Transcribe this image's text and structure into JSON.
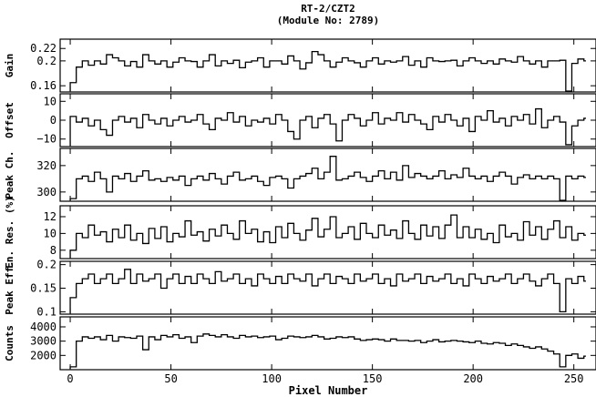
{
  "chart_data": {
    "type": "line",
    "title": [
      "RT-2/CZT2",
      "(Module No: 2789)"
    ],
    "xlabel": "Pixel Number",
    "xlim": [
      -5,
      261
    ],
    "xticks": [
      0,
      50,
      100,
      150,
      200,
      250
    ],
    "xtick_labels": [
      "0",
      "50",
      "100",
      "150",
      "200",
      "250"
    ],
    "grid": false,
    "line_color": "#000000",
    "panels": [
      {
        "ylabel": "Gain",
        "ylim": [
          0.15,
          0.235
        ],
        "yticks": [
          0.16,
          0.2,
          0.22
        ],
        "ytick_labels": [
          "0.16",
          "0.2",
          "0.22"
        ],
        "x_step": 3,
        "values": [
          0.165,
          0.19,
          0.2,
          0.193,
          0.2,
          0.195,
          0.21,
          0.205,
          0.2,
          0.192,
          0.199,
          0.19,
          0.21,
          0.2,
          0.195,
          0.2,
          0.19,
          0.198,
          0.205,
          0.2,
          0.199,
          0.19,
          0.2,
          0.21,
          0.192,
          0.2,
          0.196,
          0.201,
          0.189,
          0.198,
          0.2,
          0.205,
          0.19,
          0.2,
          0.2,
          0.195,
          0.208,
          0.2,
          0.187,
          0.197,
          0.215,
          0.21,
          0.2,
          0.19,
          0.198,
          0.205,
          0.2,
          0.197,
          0.19,
          0.2,
          0.205,
          0.195,
          0.2,
          0.198,
          0.2,
          0.207,
          0.193,
          0.2,
          0.19,
          0.205,
          0.2,
          0.199,
          0.2,
          0.201,
          0.192,
          0.2,
          0.205,
          0.2,
          0.196,
          0.2,
          0.195,
          0.203,
          0.2,
          0.198,
          0.207,
          0.2,
          0.195,
          0.2,
          0.19,
          0.2,
          0.2,
          0.201,
          0.15,
          0.196,
          0.203,
          0.2
        ]
      },
      {
        "ylabel": "Offset",
        "ylim": [
          -14,
          14
        ],
        "yticks": [
          -10,
          0,
          10
        ],
        "ytick_labels": [
          "−10",
          "0",
          "10"
        ],
        "x_step": 3,
        "values": [
          2,
          -1,
          1,
          -3,
          0,
          -5,
          -8,
          0,
          2,
          -1,
          1,
          -4,
          3,
          0,
          -2,
          1,
          -3,
          0,
          2,
          -1,
          0,
          3,
          -2,
          -5,
          1,
          0,
          4,
          -1,
          2,
          -3,
          0,
          -1,
          1,
          -2,
          3,
          0,
          -6,
          -10,
          0,
          2,
          -4,
          1,
          3,
          -2,
          -11,
          0,
          3,
          1,
          -3,
          0,
          4,
          -2,
          1,
          0,
          4,
          -1,
          3,
          0,
          -2,
          -5,
          2,
          -1,
          3,
          0,
          -3,
          1,
          -6,
          2,
          0,
          5,
          -1,
          1,
          -3,
          2,
          0,
          3,
          -2,
          6,
          -4,
          0,
          2,
          -1,
          -13,
          -3,
          0,
          1
        ]
      },
      {
        "ylabel": "Peak Ch.",
        "ylim": [
          293,
          333
        ],
        "yticks": [
          300,
          320
        ],
        "ytick_labels": [
          "300",
          "320"
        ],
        "x_step": 3,
        "values": [
          295,
          310,
          312,
          308,
          315,
          310,
          300,
          312,
          310,
          314,
          308,
          312,
          316,
          309,
          310,
          308,
          311,
          309,
          312,
          305,
          310,
          312,
          309,
          314,
          310,
          306,
          312,
          315,
          309,
          310,
          312,
          308,
          305,
          311,
          312,
          310,
          303,
          310,
          312,
          314,
          318,
          310,
          315,
          327,
          309,
          310,
          312,
          315,
          311,
          308,
          312,
          316,
          310,
          315,
          309,
          320,
          311,
          314,
          312,
          310,
          312,
          316,
          310,
          313,
          311,
          318,
          312,
          310,
          312,
          308,
          312,
          315,
          312,
          306,
          311,
          313,
          310,
          312,
          310,
          312,
          310,
          293,
          312,
          310,
          312,
          311
        ]
      },
      {
        "ylabel": "En. Res. (%)",
        "ylim": [
          7,
          13.3
        ],
        "yticks": [
          8,
          10,
          12
        ],
        "ytick_labels": [
          "8",
          "10",
          "12"
        ],
        "x_step": 3,
        "values": [
          8,
          10,
          9.5,
          11,
          9.8,
          10.2,
          9,
          10.5,
          9.5,
          11,
          9.2,
          10,
          8.8,
          10.6,
          9.4,
          10.8,
          9,
          10,
          9.6,
          11.5,
          9.8,
          10.2,
          9.1,
          10.5,
          9.7,
          11,
          10,
          9.3,
          11.5,
          10,
          10.5,
          9,
          10.2,
          8.9,
          10.8,
          9.5,
          11.2,
          10,
          9.2,
          10.4,
          11.8,
          9.6,
          10.5,
          12,
          9.5,
          10,
          10.8,
          9.3,
          11.2,
          10,
          9.5,
          11,
          9.8,
          10.4,
          9.4,
          11.5,
          10,
          9.3,
          11,
          9.7,
          10.8,
          9.4,
          11,
          12.2,
          9.5,
          10.8,
          9.5,
          10.5,
          9.3,
          10,
          8.9,
          11,
          9.6,
          10,
          9.2,
          11.4,
          9.8,
          10.8,
          9.3,
          10.5,
          11.5,
          9.5,
          10.8,
          9.2,
          10,
          9.8
        ]
      },
      {
        "ylabel": "Peak Eff.",
        "ylim": [
          0.095,
          0.207
        ],
        "yticks": [
          0.1,
          0.15,
          0.2
        ],
        "ytick_labels": [
          "0.1",
          "0.15",
          "0.2"
        ],
        "x_step": 3,
        "values": [
          0.13,
          0.16,
          0.17,
          0.18,
          0.16,
          0.17,
          0.18,
          0.16,
          0.17,
          0.19,
          0.16,
          0.18,
          0.165,
          0.17,
          0.18,
          0.15,
          0.17,
          0.18,
          0.16,
          0.175,
          0.16,
          0.18,
          0.17,
          0.16,
          0.185,
          0.165,
          0.17,
          0.18,
          0.16,
          0.17,
          0.155,
          0.18,
          0.17,
          0.16,
          0.175,
          0.16,
          0.18,
          0.17,
          0.165,
          0.18,
          0.155,
          0.17,
          0.18,
          0.16,
          0.175,
          0.17,
          0.16,
          0.18,
          0.165,
          0.17,
          0.18,
          0.16,
          0.17,
          0.155,
          0.18,
          0.165,
          0.17,
          0.18,
          0.16,
          0.175,
          0.165,
          0.17,
          0.18,
          0.16,
          0.17,
          0.155,
          0.18,
          0.17,
          0.16,
          0.175,
          0.165,
          0.17,
          0.18,
          0.16,
          0.17,
          0.18,
          0.165,
          0.155,
          0.17,
          0.18,
          0.16,
          0.1,
          0.17,
          0.16,
          0.175,
          0.165
        ]
      },
      {
        "ylabel": "Counts",
        "ylim": [
          1000,
          4700
        ],
        "yticks": [
          2000,
          3000,
          4000
        ],
        "ytick_labels": [
          "2000",
          "3000",
          "4000"
        ],
        "x_step": 3,
        "values": [
          1200,
          3000,
          3300,
          3200,
          3300,
          3100,
          3400,
          3000,
          3300,
          3250,
          3200,
          3350,
          2400,
          3300,
          3100,
          3400,
          3300,
          3450,
          3200,
          3300,
          2900,
          3350,
          3500,
          3400,
          3300,
          3450,
          3300,
          3200,
          3400,
          3300,
          3350,
          3250,
          3300,
          3350,
          3100,
          3200,
          3350,
          3300,
          3250,
          3300,
          3400,
          3300,
          3150,
          3200,
          3300,
          3250,
          3300,
          3150,
          3050,
          3100,
          3150,
          3100,
          3000,
          3150,
          3050,
          3050,
          3000,
          3050,
          2900,
          3000,
          3100,
          2950,
          3000,
          3050,
          3000,
          2950,
          2900,
          3000,
          2850,
          2800,
          2900,
          2850,
          2700,
          2800,
          2700,
          2600,
          2500,
          2600,
          2450,
          2300,
          2100,
          1200,
          2000,
          2100,
          1800,
          1950
        ]
      }
    ]
  }
}
